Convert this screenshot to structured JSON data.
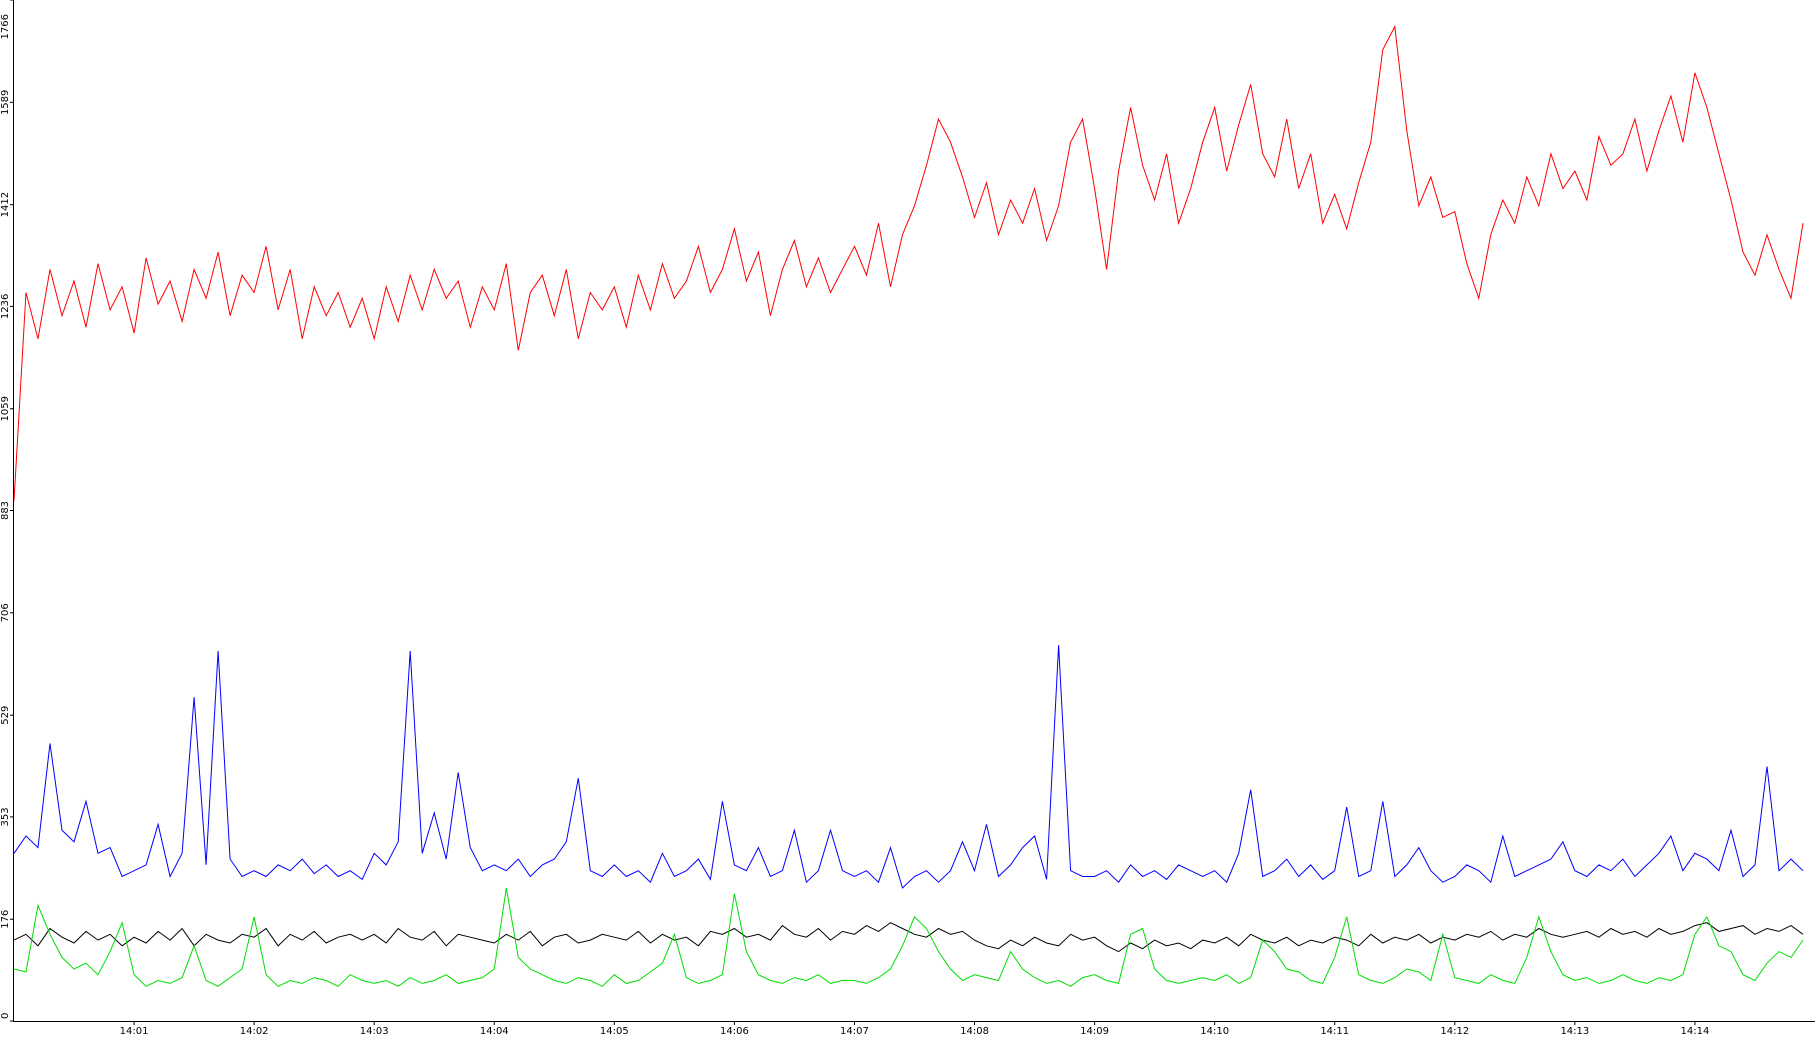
{
  "chart_data": {
    "type": "line",
    "ylim": [
      0,
      1766
    ],
    "yticks": [
      0,
      176,
      353,
      529,
      706,
      883,
      1059,
      1236,
      1412,
      1589,
      1766
    ],
    "categories": [
      null,
      null,
      null,
      null,
      null,
      null,
      null,
      null,
      null,
      null,
      "14:01",
      null,
      null,
      null,
      null,
      null,
      null,
      null,
      null,
      null,
      "14:02",
      null,
      null,
      null,
      null,
      null,
      null,
      null,
      null,
      null,
      "14:03",
      null,
      null,
      null,
      null,
      null,
      null,
      null,
      null,
      null,
      "14:04",
      null,
      null,
      null,
      null,
      null,
      null,
      null,
      null,
      null,
      "14:05",
      null,
      null,
      null,
      null,
      null,
      null,
      null,
      null,
      null,
      "14:06",
      null,
      null,
      null,
      null,
      null,
      null,
      null,
      null,
      null,
      "14:07",
      null,
      null,
      null,
      null,
      null,
      null,
      null,
      null,
      null,
      "14:08",
      null,
      null,
      null,
      null,
      null,
      null,
      null,
      null,
      null,
      "14:09",
      null,
      null,
      null,
      null,
      null,
      null,
      null,
      null,
      null,
      "14:10",
      null,
      null,
      null,
      null,
      null,
      null,
      null,
      null,
      null,
      "14:11",
      null,
      null,
      null,
      null,
      null,
      null,
      null,
      null,
      null,
      "14:12",
      null,
      null,
      null,
      null,
      null,
      null,
      null,
      null,
      null,
      "14:13",
      null,
      null,
      null,
      null,
      null,
      null,
      null,
      null,
      null,
      "14:14",
      null,
      null,
      null,
      null,
      null,
      null,
      null,
      null,
      null
    ],
    "series": [
      {
        "color": "#ff0000",
        "values": [
          900,
          1260,
          1180,
          1300,
          1220,
          1280,
          1200,
          1310,
          1230,
          1270,
          1190,
          1320,
          1240,
          1280,
          1210,
          1300,
          1250,
          1330,
          1220,
          1290,
          1260,
          1340,
          1230,
          1300,
          1180,
          1270,
          1220,
          1260,
          1200,
          1250,
          1180,
          1270,
          1210,
          1290,
          1230,
          1300,
          1250,
          1280,
          1200,
          1270,
          1230,
          1310,
          1160,
          1260,
          1290,
          1220,
          1300,
          1180,
          1260,
          1230,
          1270,
          1200,
          1290,
          1230,
          1310,
          1250,
          1280,
          1340,
          1260,
          1300,
          1370,
          1280,
          1330,
          1220,
          1300,
          1350,
          1270,
          1320,
          1260,
          1300,
          1340,
          1290,
          1380,
          1270,
          1360,
          1410,
          1480,
          1560,
          1520,
          1460,
          1390,
          1450,
          1360,
          1420,
          1380,
          1440,
          1350,
          1410,
          1520,
          1560,
          1440,
          1300,
          1470,
          1580,
          1480,
          1420,
          1500,
          1380,
          1440,
          1520,
          1580,
          1470,
          1550,
          1620,
          1500,
          1460,
          1560,
          1440,
          1500,
          1380,
          1430,
          1370,
          1450,
          1520,
          1680,
          1720,
          1540,
          1410,
          1460,
          1390,
          1400,
          1310,
          1250,
          1360,
          1420,
          1380,
          1460,
          1410,
          1500,
          1440,
          1470,
          1420,
          1530,
          1480,
          1500,
          1560,
          1470,
          1540,
          1600,
          1520,
          1640,
          1580,
          1500,
          1420,
          1330,
          1290,
          1360,
          1300,
          1250,
          1380
        ]
      },
      {
        "color": "#0000ff",
        "values": [
          290,
          320,
          300,
          480,
          330,
          310,
          380,
          290,
          300,
          250,
          260,
          270,
          340,
          250,
          290,
          560,
          270,
          640,
          280,
          250,
          260,
          250,
          270,
          260,
          280,
          255,
          270,
          250,
          260,
          245,
          290,
          270,
          310,
          640,
          290,
          360,
          280,
          430,
          300,
          260,
          270,
          260,
          280,
          250,
          270,
          280,
          310,
          420,
          260,
          250,
          270,
          250,
          260,
          240,
          290,
          250,
          260,
          280,
          245,
          380,
          270,
          260,
          300,
          250,
          260,
          330,
          240,
          260,
          330,
          260,
          250,
          260,
          240,
          300,
          230,
          250,
          260,
          240,
          260,
          310,
          260,
          340,
          250,
          270,
          300,
          320,
          245,
          650,
          260,
          250,
          250,
          260,
          240,
          270,
          250,
          260,
          245,
          270,
          260,
          250,
          260,
          240,
          290,
          400,
          250,
          260,
          280,
          250,
          270,
          245,
          260,
          370,
          250,
          260,
          380,
          250,
          270,
          300,
          260,
          240,
          250,
          270,
          260,
          240,
          320,
          250,
          260,
          270,
          280,
          310,
          260,
          250,
          270,
          260,
          280,
          250,
          270,
          290,
          320,
          260,
          290,
          280,
          260,
          330,
          250,
          270,
          440,
          260,
          280,
          260
        ]
      },
      {
        "color": "#000000",
        "values": [
          140,
          150,
          130,
          160,
          145,
          135,
          155,
          140,
          150,
          130,
          145,
          135,
          155,
          140,
          160,
          130,
          150,
          140,
          135,
          150,
          145,
          160,
          130,
          150,
          140,
          155,
          135,
          145,
          150,
          140,
          150,
          135,
          160,
          145,
          140,
          155,
          130,
          150,
          145,
          140,
          135,
          150,
          140,
          155,
          130,
          145,
          150,
          135,
          140,
          150,
          145,
          140,
          155,
          135,
          150,
          140,
          145,
          130,
          155,
          150,
          160,
          145,
          150,
          140,
          165,
          150,
          145,
          160,
          140,
          155,
          150,
          165,
          155,
          170,
          160,
          150,
          145,
          160,
          150,
          155,
          140,
          130,
          125,
          140,
          130,
          145,
          135,
          130,
          150,
          140,
          145,
          130,
          120,
          135,
          125,
          140,
          130,
          135,
          125,
          140,
          135,
          145,
          130,
          150,
          140,
          135,
          145,
          130,
          140,
          135,
          145,
          140,
          130,
          150,
          135,
          145,
          140,
          150,
          135,
          145,
          140,
          150,
          145,
          155,
          140,
          150,
          145,
          160,
          150,
          145,
          150,
          155,
          145,
          160,
          150,
          155,
          145,
          160,
          150,
          155,
          165,
          170,
          155,
          160,
          165,
          150,
          160,
          155,
          165,
          150
        ]
      },
      {
        "color": "#00dd00",
        "values": [
          90,
          85,
          200,
          150,
          110,
          90,
          100,
          80,
          120,
          170,
          80,
          60,
          70,
          65,
          75,
          130,
          70,
          60,
          75,
          90,
          180,
          80,
          60,
          70,
          65,
          75,
          70,
          60,
          80,
          70,
          65,
          70,
          60,
          75,
          65,
          70,
          80,
          65,
          70,
          75,
          90,
          230,
          110,
          90,
          80,
          70,
          65,
          75,
          70,
          60,
          80,
          65,
          70,
          85,
          100,
          150,
          75,
          65,
          70,
          80,
          220,
          120,
          80,
          70,
          65,
          75,
          70,
          80,
          65,
          70,
          70,
          65,
          75,
          90,
          130,
          180,
          160,
          120,
          90,
          70,
          80,
          75,
          70,
          120,
          90,
          75,
          65,
          70,
          60,
          75,
          80,
          70,
          65,
          150,
          160,
          90,
          70,
          65,
          70,
          75,
          70,
          80,
          65,
          75,
          140,
          120,
          90,
          85,
          70,
          65,
          110,
          180,
          80,
          70,
          65,
          75,
          90,
          85,
          70,
          150,
          75,
          70,
          65,
          80,
          70,
          65,
          110,
          180,
          120,
          80,
          70,
          75,
          65,
          70,
          80,
          70,
          65,
          75,
          70,
          80,
          150,
          180,
          130,
          120,
          80,
          70,
          100,
          120,
          110,
          140
        ]
      }
    ]
  }
}
